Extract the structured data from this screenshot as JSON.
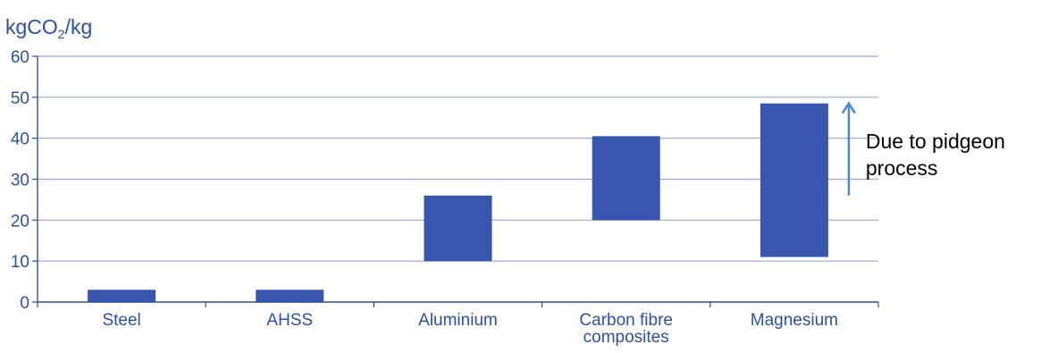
{
  "chart_data": {
    "type": "bar",
    "style": "floating-range",
    "ylabel": "kgCO2/kg",
    "ylabel_parts": {
      "base": "kgCO",
      "sub": "2",
      "rest": "/kg"
    },
    "ylim": [
      0,
      60
    ],
    "yticks": [
      0,
      10,
      20,
      30,
      40,
      50,
      60
    ],
    "grid": true,
    "categories": [
      {
        "lines": [
          "Steel"
        ]
      },
      {
        "lines": [
          "AHSS"
        ]
      },
      {
        "lines": [
          "Aluminium"
        ]
      },
      {
        "lines": [
          "Carbon fibre",
          "composites"
        ]
      },
      {
        "lines": [
          "Magnesium"
        ]
      }
    ],
    "ranges": [
      [
        0,
        3
      ],
      [
        0,
        3
      ],
      [
        10,
        26
      ],
      [
        20,
        40.5
      ],
      [
        11,
        48.5
      ]
    ],
    "annotation": {
      "lines": [
        "Due to pidgeon",
        "process"
      ],
      "category_index": 4,
      "arrow_from": 26,
      "arrow_to": 48.5
    },
    "colors": {
      "bar": "#3856ad",
      "axis": "#2e4fa5",
      "grid": "#9aaad8",
      "arrow": "#4f86d8",
      "note": "#000000"
    }
  }
}
